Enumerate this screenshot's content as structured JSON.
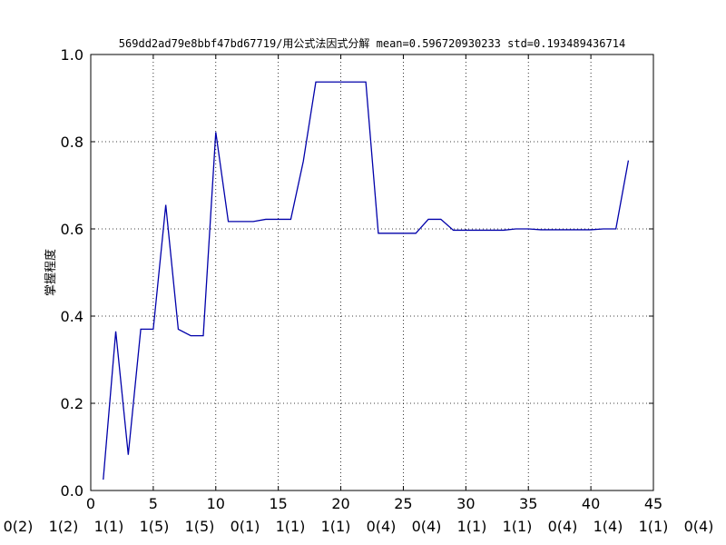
{
  "chart_data": {
    "type": "line",
    "title": "569dd2ad79e8bbf47bd67719/用公式法因式分解 mean=0.596720930233 std=0.193489436714",
    "xlabel": "",
    "ylabel": "掌握程度",
    "xlim": [
      0,
      45
    ],
    "ylim": [
      0.0,
      1.0
    ],
    "grid": true,
    "line_color": "#0000aa",
    "x_ticks": [
      "0",
      "5",
      "10",
      "15",
      "20",
      "25",
      "30",
      "35",
      "40",
      "45"
    ],
    "y_ticks": [
      "0.0",
      "0.2",
      "0.4",
      "0.6",
      "0.8",
      "1.0"
    ],
    "bottom_labels": [
      "0(2)",
      "1(2)",
      "1(1)",
      "1(5)",
      "1(5)",
      "0(1)",
      "1(1)",
      "1(1)",
      "0(4)",
      "0(4)",
      "1(1)",
      "1(1)",
      "0(4)",
      "1(4)",
      "1(1)",
      "0(4)"
    ],
    "series": [
      {
        "x": [
          1,
          2,
          3,
          4,
          5,
          6,
          7,
          8,
          9,
          10,
          11,
          12,
          13,
          14,
          15,
          16,
          17,
          18,
          19,
          20,
          21,
          22,
          23,
          24,
          25,
          26,
          27,
          28,
          29,
          30,
          31,
          32,
          33,
          34,
          35,
          36,
          37,
          38,
          39,
          40,
          41,
          42,
          43
        ],
        "values": [
          0.025,
          0.365,
          0.082,
          0.37,
          0.37,
          0.655,
          0.37,
          0.355,
          0.355,
          0.822,
          0.617,
          0.617,
          0.617,
          0.622,
          0.622,
          0.622,
          0.755,
          0.937,
          0.937,
          0.937,
          0.937,
          0.937,
          0.59,
          0.59,
          0.59,
          0.59,
          0.622,
          0.622,
          0.597,
          0.597,
          0.597,
          0.597,
          0.597,
          0.6,
          0.6,
          0.598,
          0.598,
          0.598,
          0.598,
          0.598,
          0.6,
          0.6,
          0.757
        ]
      }
    ]
  }
}
